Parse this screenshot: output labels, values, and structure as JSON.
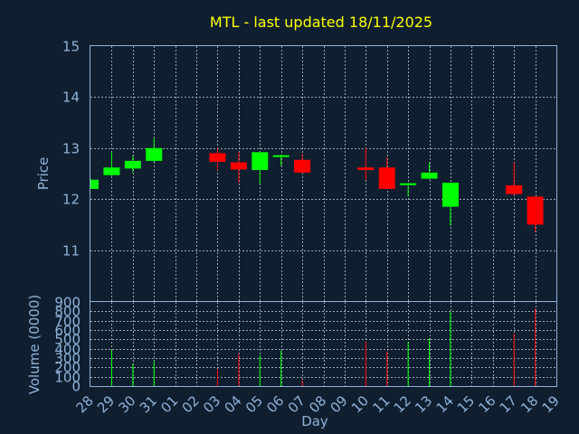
{
  "chart_data": {
    "type": "candlestick",
    "title": "MTL - last updated 18/11/2025",
    "ylabel": "Price",
    "volume_label": "Volume (0000)",
    "xlabel": "Day",
    "ylim": [
      10.0,
      15.0
    ],
    "yticks": [
      "11",
      "12",
      "13",
      "14",
      "15"
    ],
    "volume_ylim": [
      0,
      900
    ],
    "volume_ticks": [
      "0",
      "100",
      "200",
      "300",
      "400",
      "500",
      "600",
      "700",
      "800",
      "900"
    ],
    "x_labels": [
      "28",
      "29",
      "30",
      "31",
      "01",
      "02",
      "03",
      "04",
      "05",
      "06",
      "07",
      "08",
      "09",
      "10",
      "11",
      "12",
      "13",
      "14",
      "15",
      "16",
      "17",
      "18",
      "19"
    ],
    "grid": true,
    "colors": {
      "up": "#00ff00",
      "down": "#ff0000",
      "title": "#ffff00",
      "axis": "#8fb2d8",
      "background": "#0f1f30"
    },
    "candles": [
      {
        "x": "28",
        "open": 12.2,
        "high": 12.4,
        "low": 12.2,
        "close": 12.38,
        "volume": 0
      },
      {
        "x": "29",
        "open": 12.47,
        "high": 12.92,
        "low": 12.45,
        "close": 12.62,
        "volume": 390
      },
      {
        "x": "30",
        "open": 12.6,
        "high": 12.85,
        "low": 12.52,
        "close": 12.75,
        "volume": 240
      },
      {
        "x": "31",
        "open": 12.75,
        "high": 13.2,
        "low": 12.72,
        "close": 13.0,
        "volume": 270
      },
      {
        "x": "03",
        "open": 12.9,
        "high": 13.0,
        "low": 12.57,
        "close": 12.73,
        "volume": 180
      },
      {
        "x": "04",
        "open": 12.72,
        "high": 12.92,
        "low": 12.32,
        "close": 12.58,
        "volume": 350
      },
      {
        "x": "05",
        "open": 12.57,
        "high": 12.92,
        "low": 12.3,
        "close": 12.92,
        "volume": 330
      },
      {
        "x": "06",
        "open": 12.84,
        "high": 12.87,
        "low": 12.65,
        "close": 12.86,
        "volume": 380
      },
      {
        "x": "07",
        "open": 12.77,
        "high": 12.87,
        "low": 12.5,
        "close": 12.52,
        "volume": 60
      },
      {
        "x": "10",
        "open": 12.62,
        "high": 13.0,
        "low": 12.38,
        "close": 12.57,
        "volume": 480
      },
      {
        "x": "11",
        "open": 12.62,
        "high": 12.82,
        "low": 12.2,
        "close": 12.2,
        "volume": 370
      },
      {
        "x": "12",
        "open": 12.28,
        "high": 12.32,
        "low": 12.05,
        "close": 12.31,
        "volume": 470
      },
      {
        "x": "13",
        "open": 12.4,
        "high": 12.72,
        "low": 12.38,
        "close": 12.52,
        "volume": 510
      },
      {
        "x": "14",
        "open": 11.85,
        "high": 12.32,
        "low": 11.48,
        "close": 12.32,
        "volume": 800
      },
      {
        "x": "17",
        "open": 12.27,
        "high": 12.72,
        "low": 12.07,
        "close": 12.1,
        "volume": 560
      },
      {
        "x": "18",
        "open": 12.05,
        "high": 12.05,
        "low": 11.35,
        "close": 11.5,
        "volume": 830
      }
    ]
  }
}
